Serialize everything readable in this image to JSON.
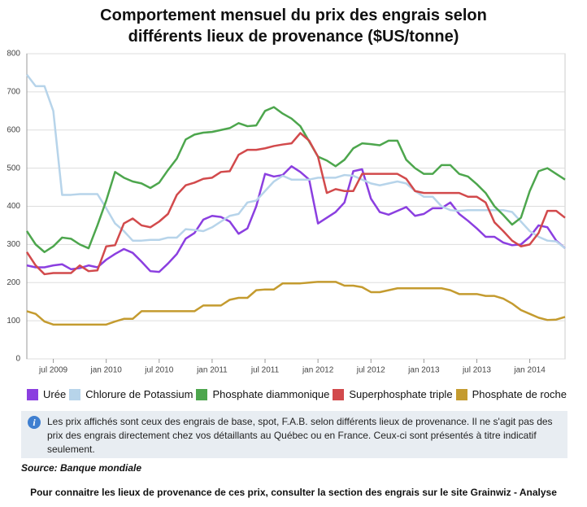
{
  "chart_data": {
    "type": "line",
    "title": "Comportement mensuel du prix des engrais selon différents lieux de provenance ($US/tonne)",
    "categories": [
      null,
      null,
      null,
      "jul 2009",
      null,
      null,
      null,
      null,
      null,
      "jan 2010",
      null,
      null,
      null,
      null,
      null,
      "jul 2010",
      null,
      null,
      null,
      null,
      null,
      "jan 2011",
      null,
      null,
      null,
      null,
      null,
      "jul 2011",
      null,
      null,
      null,
      null,
      null,
      "jan 2012",
      null,
      null,
      null,
      null,
      null,
      "jul 2012",
      null,
      null,
      null,
      null,
      null,
      "jan 2013",
      null,
      null,
      null,
      null,
      null,
      "jul 2013",
      null,
      null,
      null,
      null,
      null,
      "jan 2014",
      null,
      null,
      null,
      null
    ],
    "series": [
      {
        "name": "Urée",
        "color": "#8b3fe0",
        "values": [
          245,
          240,
          240,
          245,
          248,
          235,
          238,
          245,
          240,
          260,
          275,
          288,
          278,
          255,
          230,
          228,
          250,
          275,
          315,
          330,
          365,
          375,
          372,
          360,
          328,
          342,
          400,
          485,
          478,
          482,
          505,
          490,
          470,
          355,
          370,
          385,
          410,
          492,
          497,
          420,
          385,
          378,
          388,
          398,
          375,
          380,
          395,
          395,
          410,
          380,
          362,
          342,
          320,
          320,
          305,
          298,
          300,
          320,
          350,
          345,
          310,
          290
        ]
      },
      {
        "name": "Chlorure de Potassium",
        "color": "#b7d4ea",
        "values": [
          745,
          715,
          715,
          650,
          430,
          430,
          432,
          432,
          432,
          395,
          355,
          335,
          310,
          310,
          312,
          312,
          318,
          318,
          340,
          338,
          335,
          345,
          360,
          375,
          380,
          410,
          415,
          440,
          465,
          480,
          470,
          470,
          470,
          475,
          475,
          475,
          482,
          480,
          470,
          460,
          455,
          460,
          465,
          460,
          440,
          425,
          425,
          400,
          390,
          388,
          390,
          390,
          390,
          390,
          390,
          385,
          360,
          335,
          320,
          310,
          308,
          290
        ]
      },
      {
        "name": "Phosphate diammonique",
        "color": "#4da64d",
        "values": [
          335,
          300,
          280,
          295,
          318,
          315,
          300,
          290,
          350,
          415,
          490,
          475,
          465,
          460,
          448,
          462,
          495,
          525,
          575,
          588,
          593,
          595,
          600,
          605,
          618,
          610,
          612,
          650,
          660,
          643,
          630,
          610,
          570,
          530,
          520,
          505,
          522,
          552,
          565,
          563,
          560,
          572,
          572,
          522,
          500,
          485,
          485,
          508,
          508,
          485,
          478,
          458,
          435,
          400,
          377,
          352,
          370,
          440,
          492,
          500,
          485,
          470
        ]
      },
      {
        "name": "Superphosphate triple",
        "color": "#d24a4c",
        "values": [
          280,
          245,
          222,
          225,
          225,
          225,
          245,
          230,
          232,
          295,
          298,
          355,
          368,
          350,
          345,
          360,
          380,
          430,
          455,
          462,
          472,
          475,
          490,
          492,
          535,
          548,
          548,
          552,
          558,
          562,
          565,
          592,
          572,
          530,
          435,
          445,
          440,
          440,
          485,
          485,
          485,
          485,
          485,
          472,
          440,
          435,
          435,
          435,
          435,
          435,
          425,
          425,
          410,
          358,
          335,
          310,
          295,
          300,
          330,
          388,
          388,
          370
        ]
      },
      {
        "name": "Phosphate de roche",
        "color": "#c49b2f",
        "values": [
          125,
          118,
          98,
          90,
          90,
          90,
          90,
          90,
          90,
          90,
          98,
          105,
          105,
          125,
          125,
          125,
          125,
          125,
          125,
          125,
          140,
          140,
          140,
          155,
          160,
          160,
          180,
          182,
          182,
          198,
          198,
          198,
          200,
          202,
          202,
          202,
          192,
          192,
          188,
          175,
          175,
          180,
          185,
          185,
          185,
          185,
          185,
          185,
          180,
          170,
          170,
          170,
          165,
          165,
          158,
          145,
          128,
          118,
          108,
          102,
          103,
          110
        ]
      }
    ],
    "ylim": [
      0,
      800
    ],
    "yticks": [
      0,
      100,
      200,
      300,
      400,
      500,
      600,
      700,
      800
    ],
    "grid": true
  },
  "note": "Les prix affichés sont ceux des engrais de base, spot, F.A.B. selon différents lieux de provenance. Il ne s'agit pas des prix des engrais directement chez vos détaillants au Québec ou en France. Ceux-ci sont présentés à titre indicatif seulement.",
  "source": "Source: Banque mondiale",
  "footer": "Pour connaitre les lieux de provenance de ces prix, consulter la section des engrais sur le site Grainwiz - Analyse"
}
